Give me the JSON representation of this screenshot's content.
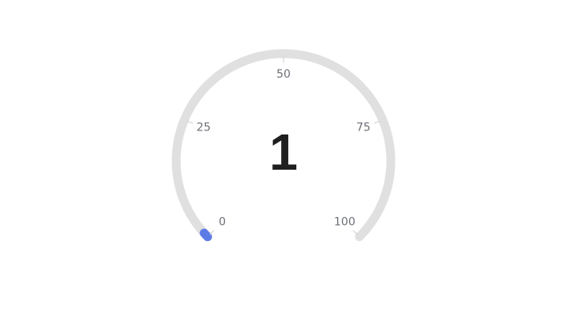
{
  "chart_data": {
    "type": "gauge",
    "value": 1,
    "value_label": "1",
    "min": 0,
    "max": 100,
    "ticks": [
      {
        "value": 0,
        "label": "0"
      },
      {
        "value": 25,
        "label": "25"
      },
      {
        "value": 50,
        "label": "50"
      },
      {
        "value": 75,
        "label": "75"
      },
      {
        "value": 100,
        "label": "100"
      }
    ],
    "colors": {
      "track": "#e0e0e0",
      "progress": "#5b7be6",
      "tick_line": "#cfcfcf",
      "tick_label": "#6e7079",
      "value_text": "#1f1f1f"
    }
  }
}
